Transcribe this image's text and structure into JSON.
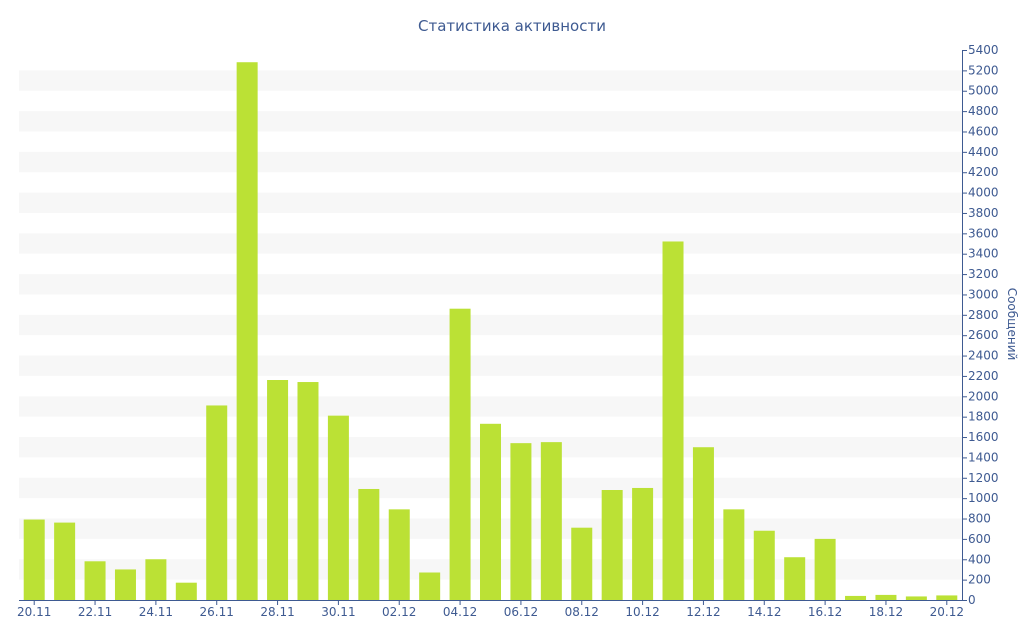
{
  "chart_data": {
    "type": "bar",
    "title": "Статистика активности",
    "xlabel": "",
    "ylabel": "Сообщений",
    "ylim": [
      0,
      5400
    ],
    "ytick_step": 200,
    "grid": "alternating horizontal bands",
    "y_axis_side": "right",
    "categories": [
      "20.11",
      "21.11",
      "22.11",
      "23.11",
      "24.11",
      "25.11",
      "26.11",
      "27.11",
      "28.11",
      "29.11",
      "30.11",
      "01.12",
      "02.12",
      "03.12",
      "04.12",
      "05.12",
      "06.12",
      "07.12",
      "08.12",
      "09.12",
      "10.12",
      "11.12",
      "12.12",
      "13.12",
      "14.12",
      "15.12",
      "16.12",
      "17.12",
      "18.12",
      "19.12",
      "20.12"
    ],
    "x_tick_labels": [
      "20.11",
      "22.11",
      "24.11",
      "26.11",
      "28.11",
      "30.11",
      "02.12",
      "04.12",
      "06.12",
      "08.12",
      "10.12",
      "12.12",
      "14.12",
      "16.12",
      "18.12",
      "20.12"
    ],
    "values": [
      790,
      760,
      380,
      300,
      400,
      170,
      1910,
      5280,
      2160,
      2140,
      1810,
      1090,
      890,
      270,
      2860,
      1730,
      1540,
      1550,
      710,
      1080,
      1100,
      3520,
      1500,
      890,
      680,
      420,
      600,
      40,
      50,
      35,
      45
    ],
    "colors": {
      "bar": "#bbe135",
      "text": "#3e5a91",
      "axis": "#3e5a91",
      "band": "#f7f7f7"
    }
  }
}
